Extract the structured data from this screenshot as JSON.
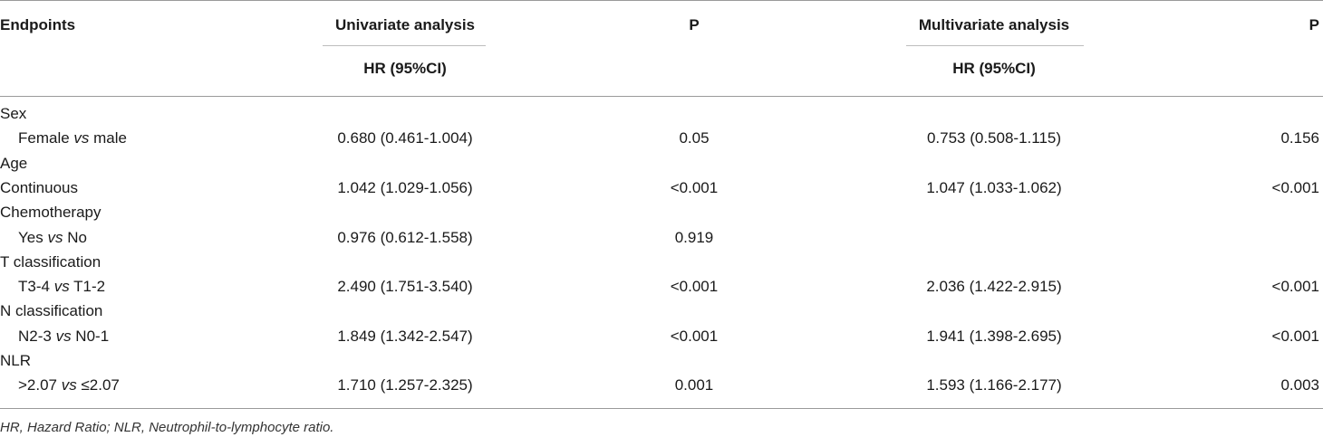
{
  "table": {
    "headers": {
      "endpoints": "Endpoints",
      "univariate": "Univariate analysis",
      "p1": "P",
      "multivariate": "Multivariate analysis",
      "p2": "P",
      "hr_uni": "HR (95%CI)",
      "hr_multi": "HR (95%CI)"
    },
    "rows": [
      {
        "label": "Sex",
        "hr_uni": "",
        "p_uni": "",
        "hr_multi": "",
        "p_multi": ""
      },
      {
        "label_pre": "Female ",
        "label_vs": "vs",
        "label_post": " male",
        "hr_uni": "0.680 (0.461-1.004)",
        "p_uni": "0.05",
        "hr_multi": "0.753 (0.508-1.115)",
        "p_multi": "0.156"
      },
      {
        "label": "Age",
        "hr_uni": "",
        "p_uni": "",
        "hr_multi": "",
        "p_multi": ""
      },
      {
        "label": "Continuous",
        "hr_uni": "1.042 (1.029-1.056)",
        "p_uni": "<0.001",
        "hr_multi": "1.047 (1.033-1.062)",
        "p_multi": "<0.001"
      },
      {
        "label": "Chemotherapy",
        "hr_uni": "",
        "p_uni": "",
        "hr_multi": "",
        "p_multi": ""
      },
      {
        "label_pre": "Yes ",
        "label_vs": "vs",
        "label_post": " No",
        "hr_uni": "0.976 (0.612-1.558)",
        "p_uni": "0.919",
        "hr_multi": "",
        "p_multi": ""
      },
      {
        "label": "T classification",
        "hr_uni": "",
        "p_uni": "",
        "hr_multi": "",
        "p_multi": ""
      },
      {
        "label_pre": "T3-4 ",
        "label_vs": "vs",
        "label_post": " T1-2",
        "hr_uni": "2.490 (1.751-3.540)",
        "p_uni": "<0.001",
        "hr_multi": "2.036 (1.422-2.915)",
        "p_multi": "<0.001"
      },
      {
        "label": "N classification",
        "hr_uni": "",
        "p_uni": "",
        "hr_multi": "",
        "p_multi": ""
      },
      {
        "label_pre": "N2-3 ",
        "label_vs": "vs",
        "label_post": " N0-1",
        "hr_uni": "1.849 (1.342-2.547)",
        "p_uni": "<0.001",
        "hr_multi": "1.941 (1.398-2.695)",
        "p_multi": "<0.001"
      },
      {
        "label": "NLR",
        "hr_uni": "",
        "p_uni": "",
        "hr_multi": "",
        "p_multi": ""
      },
      {
        "label_pre": ">2.07 ",
        "label_vs": "vs",
        "label_post": " ≤2.07",
        "hr_uni": "1.710 (1.257-2.325)",
        "p_uni": "0.001",
        "hr_multi": "1.593 (1.166-2.177)",
        "p_multi": "0.003"
      }
    ],
    "footnote": "HR, Hazard Ratio; NLR, Neutrophil-to-lymphocyte ratio."
  }
}
